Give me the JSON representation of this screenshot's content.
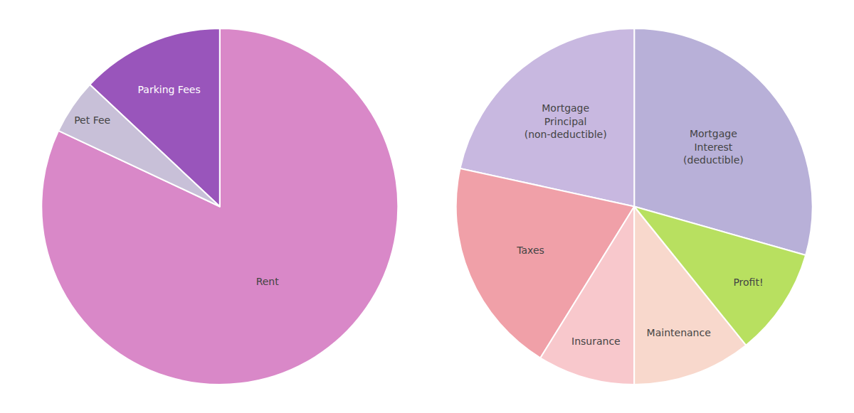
{
  "chart_data": [
    {
      "type": "pie",
      "categories": [
        "Rent",
        "Parking Fees",
        "Pet Fee"
      ],
      "values": [
        82,
        13,
        5
      ],
      "colors": [
        "#D988C8",
        "#9955BB",
        "#C8C0D8"
      ]
    },
    {
      "type": "pie",
      "categories": [
        "Mortgage\nInterest\n(deductible)",
        "Mortgage\nPrincipal\n(non-deductible)",
        "Taxes",
        "Insurance",
        "Maintenance",
        "Profit!"
      ],
      "values": [
        30,
        22,
        20,
        9,
        11,
        10
      ],
      "colors": [
        "#B8B0D8",
        "#C8B8E0",
        "#F0A0A8",
        "#F8C8CC",
        "#F8D8CC",
        "#B8E060"
      ]
    }
  ]
}
